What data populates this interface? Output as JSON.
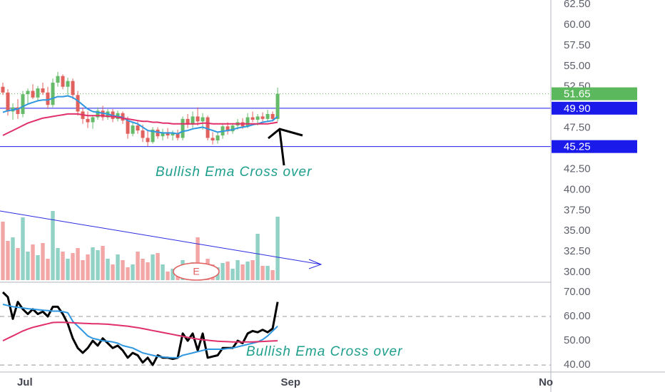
{
  "chart_data": [
    {
      "type": "candlestick",
      "open": [
        52.5,
        51.8,
        49.5,
        50,
        49.2,
        51.6,
        52,
        51.2,
        52.3,
        51.8,
        50.3,
        53,
        53.8,
        52.5,
        53.2,
        51.5,
        49.5,
        48.6,
        48.2,
        48.8,
        49.6,
        48.8,
        49.5,
        48.6,
        49.3,
        48.4,
        46.8,
        47.8,
        47.2,
        46.3,
        45.8,
        47.3,
        46.5,
        47,
        46.6,
        46.9,
        46.3,
        48.6,
        47.9,
        48.9,
        48.3,
        48.8,
        46.3,
        46,
        46.6,
        47.7,
        47.1,
        47.8,
        48.2,
        47.7,
        48.8,
        48.5,
        48.9,
        48.6,
        49.2,
        48.6
      ],
      "high": [
        53,
        52.2,
        50.5,
        51,
        52,
        52.3,
        52.8,
        52.6,
        53,
        52.5,
        53.5,
        54.3,
        54,
        53.6,
        53.5,
        52,
        50,
        49.5,
        49,
        50,
        50.2,
        49.8,
        49.8,
        49.6,
        49.5,
        48.9,
        48.2,
        48.3,
        47.9,
        47.3,
        47.6,
        47.6,
        47.4,
        47.5,
        47.2,
        47.3,
        48.9,
        49.2,
        49.5,
        50,
        49.3,
        49,
        47,
        47,
        48,
        48.2,
        48.1,
        48.6,
        48.7,
        49.3,
        49.5,
        49.2,
        49.4,
        49.7,
        49.5,
        52.4
      ],
      "low": [
        51.5,
        49,
        48.5,
        48.6,
        48.8,
        50.5,
        51,
        50.8,
        51.5,
        49.8,
        50,
        52.5,
        52.2,
        51.5,
        51,
        49,
        48,
        47.5,
        47.4,
        48.5,
        48.4,
        48.5,
        48.2,
        48.3,
        48,
        46.2,
        46.5,
        46.8,
        45.8,
        45.3,
        45.6,
        46.2,
        46,
        46.2,
        46,
        46,
        46,
        47.5,
        47.5,
        47.8,
        47.3,
        46,
        45.5,
        45.6,
        46.2,
        46.7,
        46.8,
        47.3,
        47.4,
        47.5,
        48.2,
        47.8,
        48.3,
        48.2,
        48.3,
        48.3
      ],
      "close": [
        51.8,
        49.5,
        50,
        49.2,
        51.6,
        52,
        51.2,
        52.3,
        51.8,
        50.3,
        53,
        53.8,
        52.5,
        53.2,
        51.5,
        49.5,
        48.6,
        48.2,
        48.8,
        49.6,
        48.8,
        49.5,
        48.6,
        49.3,
        48.4,
        46.8,
        47.8,
        47.2,
        46.3,
        45.8,
        47.3,
        46.5,
        47,
        46.6,
        46.9,
        46.3,
        48.6,
        47.9,
        48.9,
        48.3,
        48.8,
        46.3,
        46,
        46.6,
        47.7,
        47.1,
        47.8,
        48.2,
        47.7,
        48.8,
        48.5,
        48.9,
        48.6,
        49.2,
        48.6,
        51.65
      ],
      "up_color": "#66bb6a",
      "down_color": "#e0605e",
      "series": [
        {
          "color": "#2f96e0",
          "values": [
            49.4,
            49.6,
            49.7,
            49.8,
            50.1,
            50.4,
            50.6,
            50.8,
            50.9,
            50.9,
            51.1,
            51.3,
            51.3,
            51.4,
            51.2,
            50.8,
            50.3,
            49.8,
            49.5,
            49.4,
            49.3,
            49.2,
            49.0,
            48.9,
            48.8,
            48.4,
            48.2,
            48.0,
            47.6,
            47.2,
            47.1,
            47.0,
            46.9,
            46.9,
            46.9,
            46.8,
            47.1,
            47.2,
            47.4,
            47.5,
            47.6,
            47.4,
            47.2,
            47.0,
            47.1,
            47.2,
            47.3,
            47.5,
            47.6,
            47.7,
            47.9,
            48.0,
            48.2,
            48.3,
            48.4,
            48.9
          ]
        },
        {
          "color": "#e0306a",
          "values": [
            46.6,
            46.9,
            47.2,
            47.5,
            47.8,
            48.1,
            48.3,
            48.5,
            48.7,
            48.8,
            48.9,
            49.0,
            49.1,
            49.2,
            49.2,
            49.2,
            49.1,
            49.0,
            49.0,
            49.0,
            49.0,
            48.9,
            48.9,
            48.8,
            48.7,
            48.6,
            48.5,
            48.4,
            48.3,
            48.3,
            48.2,
            48.2,
            48.1,
            48.1,
            48.0,
            48.0,
            48.0,
            48.0,
            48.0,
            48.0,
            48.1,
            48.1,
            48.0,
            48.0,
            48.0,
            48.0,
            48.0,
            48.0,
            48.0,
            48.0,
            48.0,
            48.0,
            48.0,
            48.0,
            48.1,
            48.2
          ]
        }
      ],
      "volume": [
        82,
        55,
        60,
        45,
        88,
        40,
        50,
        35,
        52,
        30,
        97,
        45,
        40,
        30,
        38,
        45,
        28,
        36,
        46,
        42,
        48,
        30,
        22,
        36,
        28,
        18,
        22,
        40,
        30,
        25,
        36,
        38,
        22,
        12,
        16,
        18,
        28,
        20,
        25,
        60,
        20,
        30,
        22,
        18,
        24,
        26,
        16,
        28,
        22,
        26,
        28,
        65,
        20,
        20,
        14,
        89
      ],
      "volume_lim": [
        0,
        100
      ],
      "volume_up_color": "#92d1c5",
      "volume_down_color": "#f3a6a6",
      "xlim": [
        -0.57,
        109.4
      ],
      "xticks": [
        {
          "value": 4.4,
          "label": "Jul"
        },
        {
          "value": 57.6,
          "label": "Sep"
        },
        {
          "value": 108.7,
          "label": "No"
        }
      ],
      "ylim": [
        28.8,
        63.02
      ],
      "yticks": [
        {
          "value": 30,
          "label": "30.00"
        },
        {
          "value": 32.5,
          "label": "32.50"
        },
        {
          "value": 35,
          "label": "35.00"
        },
        {
          "value": 37.5,
          "label": "37.50"
        },
        {
          "value": 40,
          "label": "40.00"
        },
        {
          "value": 42.5,
          "label": "42.50"
        },
        {
          "value": 45,
          "label": "45.00"
        },
        {
          "value": 47.5,
          "label": "47.50"
        },
        {
          "value": 50,
          "label": "50.00"
        },
        {
          "value": 52.5,
          "label": "52.50"
        },
        {
          "value": 55,
          "label": "55.00"
        },
        {
          "value": 57.5,
          "label": "57.50"
        },
        {
          "value": 60,
          "label": "60.00"
        },
        {
          "value": 62.5,
          "label": "62.50"
        }
      ],
      "last_price": {
        "value": 51.65,
        "label": "51.65",
        "color": "#5cb85c"
      },
      "levels": [
        {
          "value": 49.9,
          "label": "49.90",
          "color": "#1a1aeb"
        },
        {
          "value": 45.25,
          "label": "45.25",
          "color": "#1a1aeb"
        }
      ],
      "annotation": "Bullish Ema Cross over",
      "event_marker": "E"
    },
    {
      "type": "line",
      "series": [
        {
          "color": "#000000",
          "width": 3,
          "values": [
            70,
            68,
            59,
            66,
            63,
            61,
            63,
            61,
            62,
            60,
            64,
            64,
            61,
            57,
            51,
            47,
            45,
            47,
            50,
            48,
            51,
            49,
            47,
            48,
            46,
            43,
            45,
            44,
            41,
            43,
            40,
            44,
            43,
            43,
            42.5,
            43,
            53,
            50,
            53,
            46,
            53,
            43,
            43.5,
            44,
            47,
            47,
            47,
            50,
            49,
            53,
            54,
            53.5,
            54.5,
            53.5,
            55,
            66
          ]
        },
        {
          "color": "#2f96e0",
          "width": 2,
          "values": [
            65,
            64.5,
            64,
            63.8,
            63.5,
            63.2,
            63,
            62.8,
            62.6,
            62.4,
            62.2,
            62.2,
            62,
            61.5,
            58,
            56,
            54,
            52,
            51,
            50.5,
            50,
            49.8,
            49.5,
            49,
            48,
            47.5,
            47,
            46,
            45,
            44.5,
            44,
            43.5,
            43.3,
            43.1,
            43,
            43,
            44,
            44.5,
            45,
            45.5,
            46,
            46.5,
            46.5,
            46.5,
            46.5,
            46.8,
            47,
            47.5,
            48,
            48.5,
            49,
            49.5,
            50.5,
            52,
            54,
            56
          ]
        },
        {
          "color": "#e0306a",
          "width": 2,
          "values": [
            50,
            51,
            52,
            53,
            54,
            54.8,
            55.5,
            56,
            56.5,
            57,
            57.5,
            57.6,
            57.6,
            57.5,
            57.4,
            57.3,
            57.2,
            57.1,
            57,
            57,
            56.9,
            56.8,
            56.6,
            56.4,
            56.2,
            56,
            55.7,
            55.4,
            55,
            54.6,
            54.2,
            53.8,
            53.4,
            53,
            52.6,
            52.2,
            51.8,
            51.4,
            51,
            50.7,
            50.4,
            50.2,
            50,
            49.8,
            49.7,
            49.6,
            49.5,
            49.5,
            49.5,
            49.5,
            49.5,
            49.6,
            49.7,
            49.8,
            49.9,
            50
          ]
        }
      ],
      "ylim": [
        37.1,
        74.1
      ],
      "yticks": [
        {
          "value": 40,
          "label": "40.00"
        },
        {
          "value": 50,
          "label": "50.00"
        },
        {
          "value": 60,
          "label": "60.00"
        },
        {
          "value": 70,
          "label": "70.00"
        }
      ],
      "dashed_levels": [
        60,
        40
      ],
      "annotation": "Bullish Ema Cross over"
    }
  ]
}
